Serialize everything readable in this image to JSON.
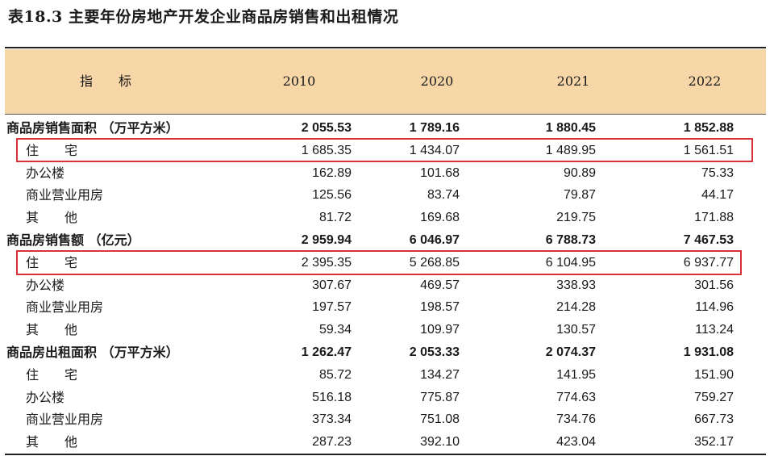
{
  "title": "表18.3  主要年份房地产开发企业商品房销售和出租情况",
  "header": {
    "indicator": "指　　标",
    "years": [
      "2010",
      "2020",
      "2021",
      "2022"
    ]
  },
  "rows": [
    {
      "label": "商品房销售面积  （万平方米）",
      "type": "main",
      "values": [
        "2 055.53",
        "1 789.16",
        "1 880.45",
        "1 852.88"
      ]
    },
    {
      "label": "住　　宅",
      "type": "sub",
      "values": [
        "1 685.35",
        "1 434.07",
        "1 489.95",
        "1 561.51"
      ]
    },
    {
      "label": "办公楼",
      "type": "sub",
      "values": [
        "162.89",
        "101.68",
        "90.89",
        "75.33"
      ]
    },
    {
      "label": "商业营业用房",
      "type": "sub",
      "values": [
        "125.56",
        "83.74",
        "79.87",
        "44.17"
      ]
    },
    {
      "label": "其　　他",
      "type": "sub",
      "values": [
        "81.72",
        "169.68",
        "219.75",
        "171.88"
      ]
    },
    {
      "label": "商品房销售额  （亿元）",
      "type": "main",
      "values": [
        "2 959.94",
        "6 046.97",
        "6 788.73",
        "7 467.53"
      ]
    },
    {
      "label": "住　　宅",
      "type": "sub",
      "values": [
        "2 395.35",
        "5 268.85",
        "6 104.95",
        "6 937.77"
      ]
    },
    {
      "label": "办公楼",
      "type": "sub",
      "values": [
        "307.67",
        "469.57",
        "338.93",
        "301.56"
      ]
    },
    {
      "label": "商业营业用房",
      "type": "sub",
      "values": [
        "197.57",
        "198.57",
        "214.28",
        "114.96"
      ]
    },
    {
      "label": "其　　他",
      "type": "sub",
      "values": [
        "59.34",
        "109.97",
        "130.57",
        "113.24"
      ]
    },
    {
      "label": "商品房出租面积  （万平方米）",
      "type": "main",
      "values": [
        "1 262.47",
        "2 053.33",
        "2 074.37",
        "1 931.08"
      ]
    },
    {
      "label": "住　　宅",
      "type": "sub",
      "values": [
        "85.72",
        "134.27",
        "141.95",
        "151.90"
      ]
    },
    {
      "label": "办公楼",
      "type": "sub",
      "values": [
        "516.18",
        "775.87",
        "774.63",
        "759.27"
      ]
    },
    {
      "label": "商业营业用房",
      "type": "sub",
      "values": [
        "373.34",
        "751.08",
        "734.76",
        "667.73"
      ]
    },
    {
      "label": "其　　他",
      "type": "sub",
      "values": [
        "287.23",
        "392.10",
        "423.04",
        "352.17"
      ]
    }
  ],
  "highlight_color": "#d9333a",
  "header_color": "#f7d6a7"
}
